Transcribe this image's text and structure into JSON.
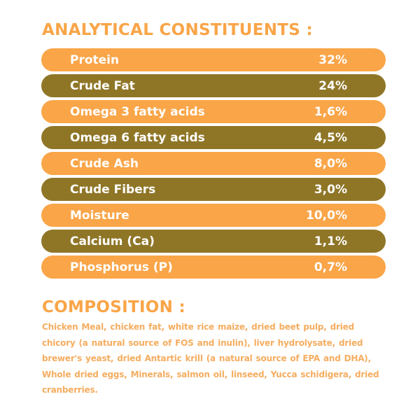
{
  "colors": {
    "orange": "#f9a548",
    "olive": "#8f7627",
    "heading": "#f9a548",
    "body_text": "#f5ad60"
  },
  "analytical": {
    "title": "ANALYTICAL CONSTITUENTS :",
    "rows": [
      {
        "label": "Protein",
        "value": "32%",
        "tone": "orange"
      },
      {
        "label": "Crude Fat",
        "value": "24%",
        "tone": "olive"
      },
      {
        "label": "Omega 3 fatty acids",
        "value": "1,6%",
        "tone": "orange"
      },
      {
        "label": "Omega 6 fatty acids",
        "value": "4,5%",
        "tone": "olive"
      },
      {
        "label": "Crude Ash",
        "value": "8,0%",
        "tone": "orange"
      },
      {
        "label": "Crude Fibers",
        "value": "3,0%",
        "tone": "olive"
      },
      {
        "label": "Moisture",
        "value": "10,0%",
        "tone": "orange"
      },
      {
        "label": "Calcium (Ca)",
        "value": "1,1%",
        "tone": "olive"
      },
      {
        "label": "Phosphorus (P)",
        "value": "0,7%",
        "tone": "orange"
      }
    ]
  },
  "composition": {
    "title": "COMPOSITION :",
    "text": "Chicken Meal, chicken fat, white rice maize, dried beet pulp, dried chicory (a natural source of FOS and inulin), liver hydrolysate, dried brewer's yeast, dried Antartic krill (a natural source of EPA and DHA), Whole dried eggs, Minerals, salmon oil, linseed, Yucca schidigera, dried cranberries."
  }
}
